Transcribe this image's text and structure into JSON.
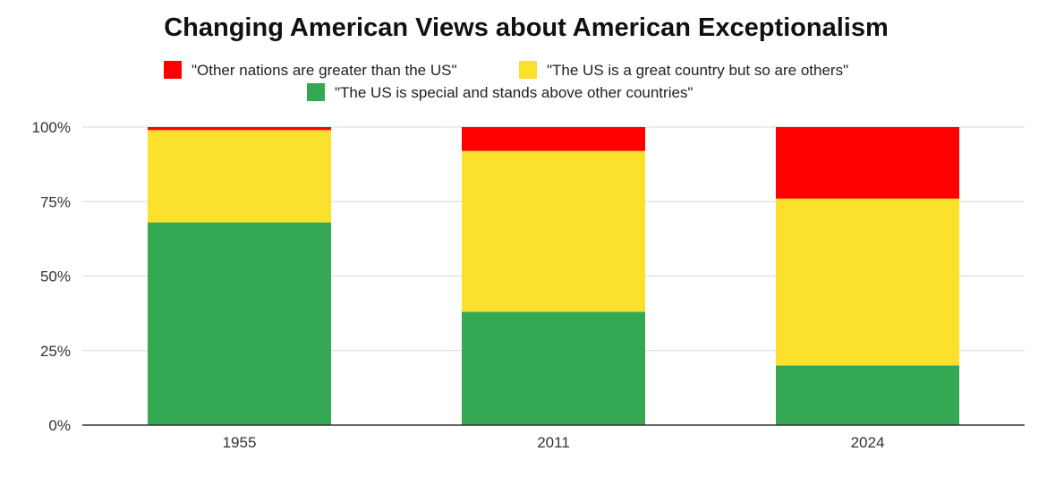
{
  "chart_data": {
    "type": "bar",
    "stacked": true,
    "title": "Changing American Views about American Exceptionalism",
    "categories": [
      "1955",
      "2011",
      "2024"
    ],
    "series": [
      {
        "name": "\"The US is special and stands above other countries\"",
        "color": "#34a853",
        "values": [
          68,
          38,
          20
        ]
      },
      {
        "name": "\"The US is a great country but so are others\"",
        "color": "#fbe12c",
        "values": [
          31,
          54,
          56
        ]
      },
      {
        "name": "\"Other nations are greater than the US\"",
        "color": "#ff0000",
        "values": [
          1,
          8,
          24
        ]
      }
    ],
    "legend_order": [
      2,
      1,
      0
    ],
    "legend_position": "top",
    "y_ticks": [
      "0%",
      "25%",
      "50%",
      "75%",
      "100%"
    ],
    "ylim": [
      0,
      100
    ],
    "xlabel": "",
    "ylabel": "",
    "grid": true
  }
}
